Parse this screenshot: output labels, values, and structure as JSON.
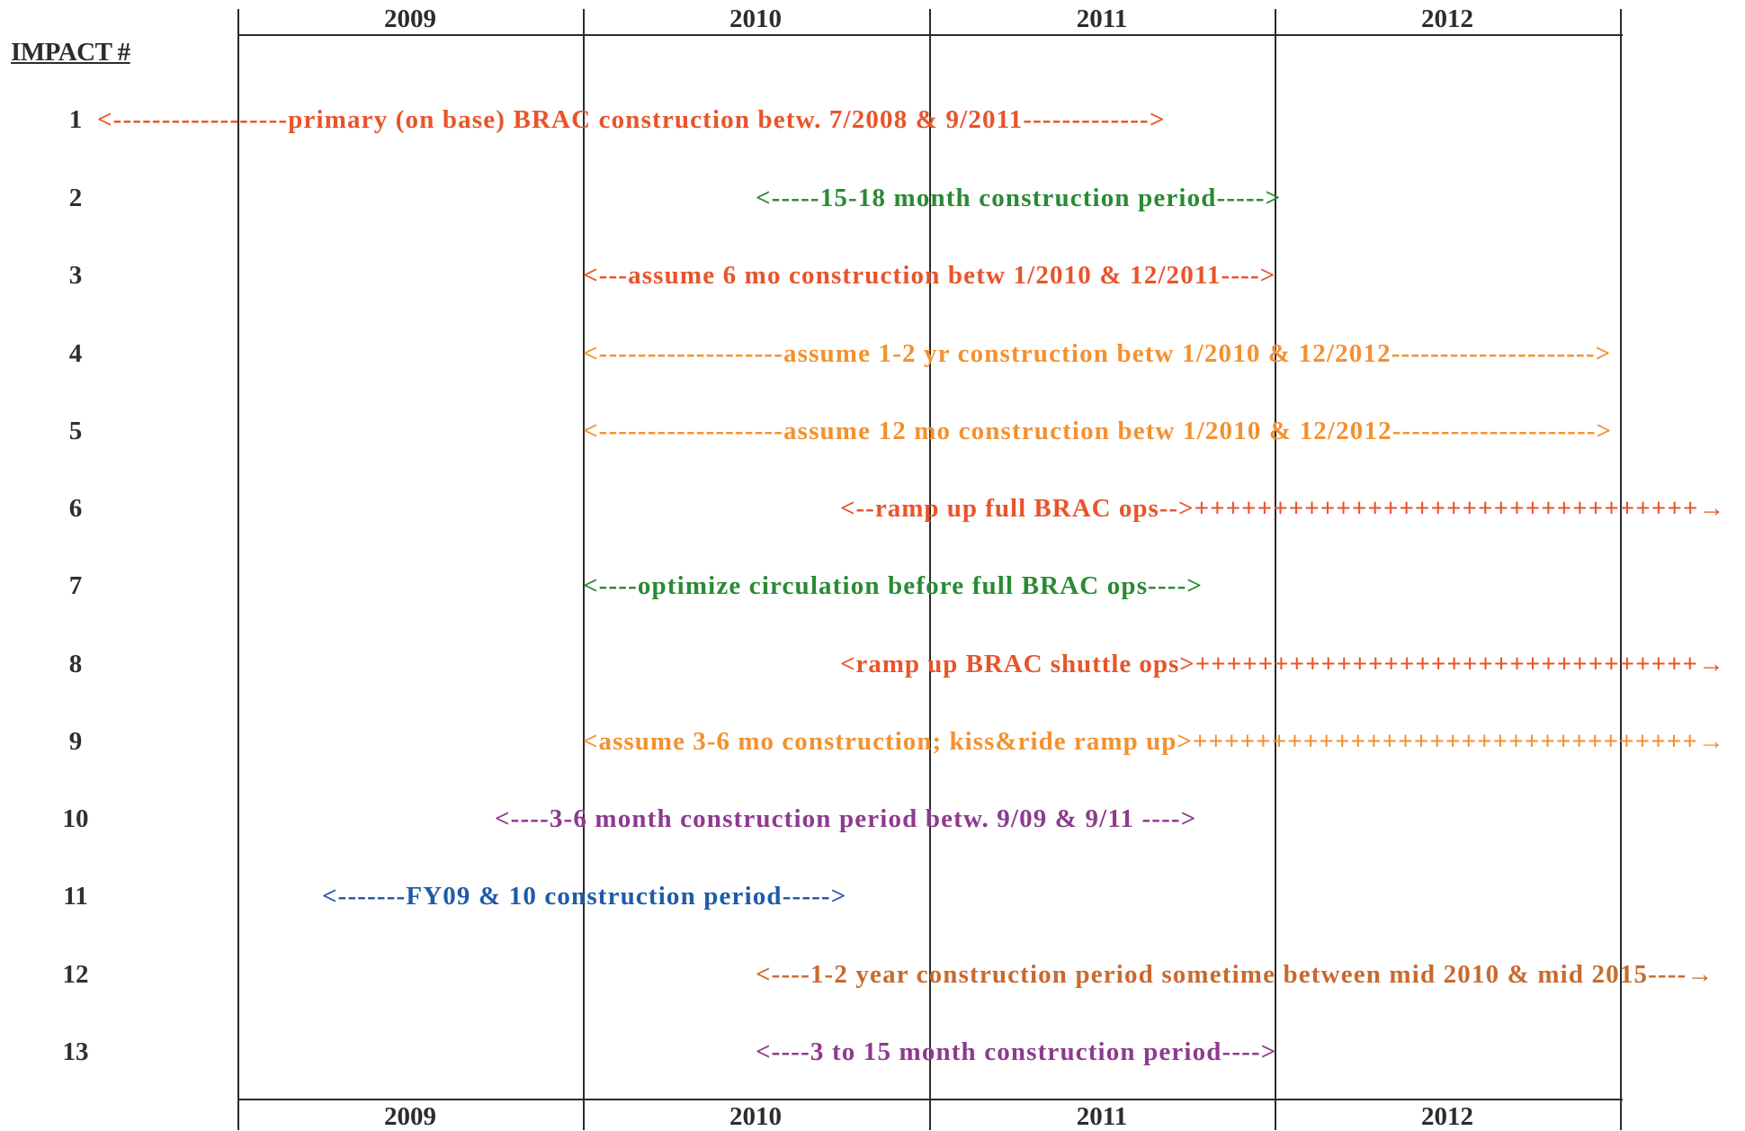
{
  "years": [
    "2009",
    "2010",
    "2011",
    "2012"
  ],
  "heading": "IMPACT #",
  "colors": {
    "red_orange": "#e8542a",
    "orange": "#f39130",
    "green": "#2a8a34",
    "purple": "#8e3a8e",
    "blue": "#1f5ba8",
    "brown": "#c86a2e",
    "grid": "#2a2a2a"
  },
  "rows": [
    {
      "num": "1",
      "text": "<------------------primary (on base) BRAC construction betw. 7/2008 & 9/2011------------->"
    },
    {
      "num": "2",
      "text": "<-----15-18 month construction period----->"
    },
    {
      "num": "3",
      "text": "<---assume 6 mo construction betw 1/2010 & 12/2011---->"
    },
    {
      "num": "4",
      "text": "<-------------------assume 1-2 yr construction betw 1/2010 & 12/2012--------------------->"
    },
    {
      "num": "5",
      "text": "<-------------------assume 12 mo construction betw 1/2010 & 12/2012--------------------->"
    },
    {
      "num": "6",
      "text": "<--ramp up full BRAC ops-->++++++++++++++++++++++++++++++++→"
    },
    {
      "num": "7",
      "text": "<----optimize circulation before full BRAC ops---->"
    },
    {
      "num": "8",
      "text": "<ramp up BRAC shuttle ops>++++++++++++++++++++++++++++++++→"
    },
    {
      "num": "9",
      "text": "<assume 3-6 mo construction; kiss&ride ramp up>++++++++++++++++++++++++++++++++→"
    },
    {
      "num": "10",
      "text": "<----3-6 month construction period betw. 9/09 & 9/11 ---->"
    },
    {
      "num": "11",
      "text": "<-------FY09 & 10 construction period----->"
    },
    {
      "num": "12",
      "text": "<----1-2 year construction period sometime between mid 2010 & mid 2015----→"
    },
    {
      "num": "13",
      "text": "<----3 to 15 month construction period---->"
    }
  ]
}
